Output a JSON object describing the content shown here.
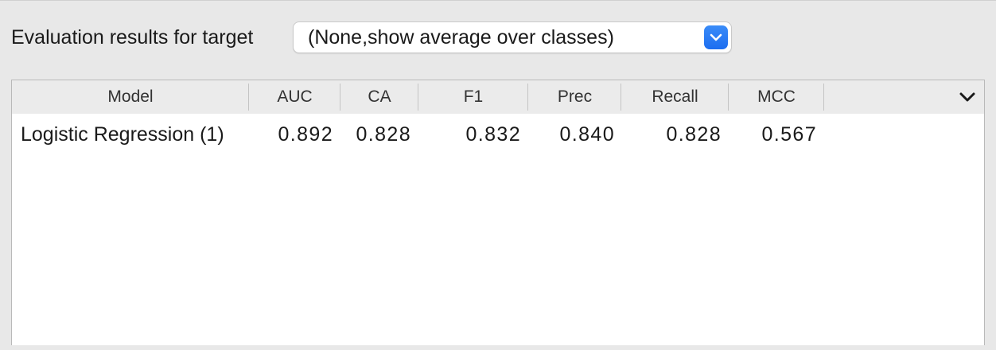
{
  "target": {
    "label": "Evaluation results for target",
    "selected": "(None,show average over classes)"
  },
  "icons": {
    "combo_arrow": "chevron-down-icon",
    "column_menu": "chevron-down-icon"
  },
  "colors": {
    "accent": "#2a7cf6",
    "header_bg": "#ebebeb",
    "window_bg": "#e8e8e8"
  },
  "table": {
    "columns": [
      "Model",
      "AUC",
      "CA",
      "F1",
      "Prec",
      "Recall",
      "MCC"
    ],
    "rows": [
      {
        "model": "Logistic Regression (1)",
        "auc": "0.892",
        "ca": "0.828",
        "f1": "0.832",
        "prec": "0.840",
        "recall": "0.828",
        "mcc": "0.567"
      }
    ]
  }
}
